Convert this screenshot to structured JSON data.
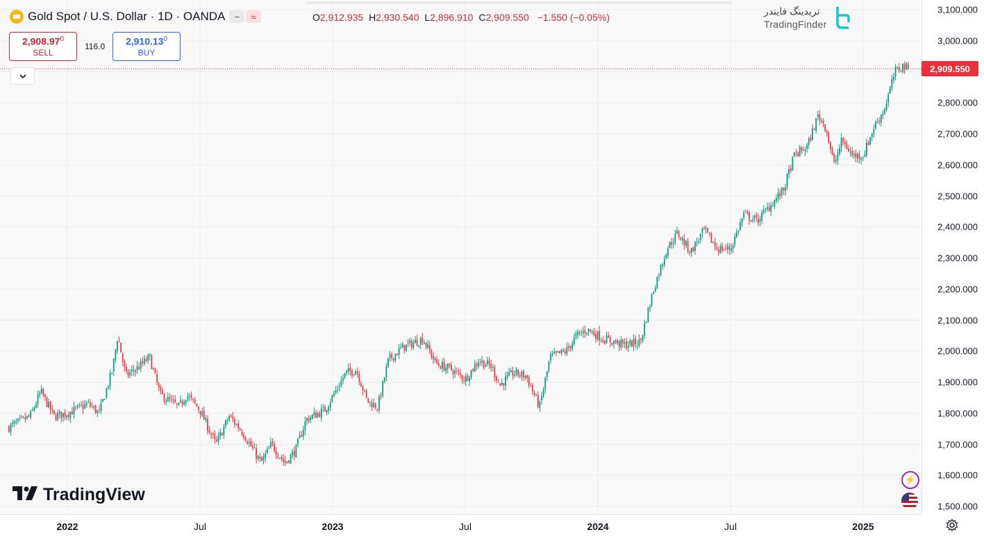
{
  "legend": {
    "title": "Gold Spot / U.S. Dollar · 1D · OANDA",
    "ohlc": {
      "o_label": "O",
      "o": "2,912.935",
      "h_label": "H",
      "h": "2,930.540",
      "l_label": "L",
      "l": "2,896.910",
      "c_label": "C",
      "c": "2,909.550",
      "change": "−1.550 (−0.05%)"
    },
    "chip_minus": "−",
    "chip_wave": "≈"
  },
  "trade": {
    "sell_price": "2,908.97",
    "sell_price_sup": "0",
    "sell_label": "SELL",
    "spread": "116.0",
    "buy_price": "2,910.13",
    "buy_price_sup": "0",
    "buy_label": "BUY"
  },
  "collapse_icon": "chevron-down-icon",
  "last_price_tag": "2,909.550",
  "branding": {
    "tradingview": "TradingView",
    "tradingfinder_fa": "تریدینگ فایندر",
    "tradingfinder_en": "TradingFinder"
  },
  "colors": {
    "up": "#089981",
    "down": "#f23645",
    "sell": "#c8263a",
    "buy": "#2962ff",
    "last_price": "#e8313d"
  },
  "chart_data": {
    "type": "candlestick",
    "symbol": "XAUUSD",
    "interval": "1D",
    "ylim": [
      1500,
      3100
    ],
    "y_ticks": [
      "3,100.000",
      "3,000.000",
      "2,900.000",
      "2,800.000",
      "2,700.000",
      "2,600.000",
      "2,500.000",
      "2,400.000",
      "2,300.000",
      "2,200.000",
      "2,100.000",
      "2,000.000",
      "1,900.000",
      "1,800.000",
      "1,700.000",
      "1,600.000",
      "1,500.000"
    ],
    "x_ticks": [
      {
        "label": "2022",
        "year": true,
        "t": 2022.0
      },
      {
        "label": "Jul",
        "year": false,
        "t": 2022.5
      },
      {
        "label": "2023",
        "year": true,
        "t": 2023.0
      },
      {
        "label": "Jul",
        "year": false,
        "t": 2023.5
      },
      {
        "label": "2024",
        "year": true,
        "t": 2024.0
      },
      {
        "label": "Jul",
        "year": false,
        "t": 2024.5
      },
      {
        "label": "2025",
        "year": true,
        "t": 2025.0
      }
    ],
    "last_close": 2909.55,
    "approx_path": [
      [
        2021.78,
        1755
      ],
      [
        2021.86,
        1790
      ],
      [
        2021.9,
        1870
      ],
      [
        2021.95,
        1790
      ],
      [
        2022.0,
        1800
      ],
      [
        2022.08,
        1830
      ],
      [
        2022.12,
        1800
      ],
      [
        2022.17,
        1940
      ],
      [
        2022.19,
        2050
      ],
      [
        2022.22,
        1920
      ],
      [
        2022.27,
        1950
      ],
      [
        2022.31,
        1980
      ],
      [
        2022.35,
        1860
      ],
      [
        2022.42,
        1820
      ],
      [
        2022.45,
        1860
      ],
      [
        2022.5,
        1810
      ],
      [
        2022.56,
        1700
      ],
      [
        2022.61,
        1790
      ],
      [
        2022.66,
        1740
      ],
      [
        2022.73,
        1640
      ],
      [
        2022.77,
        1700
      ],
      [
        2022.82,
        1640
      ],
      [
        2022.86,
        1680
      ],
      [
        2022.9,
        1780
      ],
      [
        2022.97,
        1810
      ],
      [
        2023.05,
        1930
      ],
      [
        2023.09,
        1940
      ],
      [
        2023.13,
        1840
      ],
      [
        2023.17,
        1820
      ],
      [
        2023.21,
        1970
      ],
      [
        2023.26,
        2010
      ],
      [
        2023.34,
        2040
      ],
      [
        2023.39,
        1960
      ],
      [
        2023.45,
        1940
      ],
      [
        2023.5,
        1910
      ],
      [
        2023.55,
        1970
      ],
      [
        2023.6,
        1950
      ],
      [
        2023.63,
        1890
      ],
      [
        2023.68,
        1930
      ],
      [
        2023.73,
        1920
      ],
      [
        2023.78,
        1820
      ],
      [
        2023.82,
        1980
      ],
      [
        2023.88,
        2000
      ],
      [
        2023.92,
        2050
      ],
      [
        2023.96,
        2070
      ],
      [
        2024.02,
        2040
      ],
      [
        2024.1,
        2020
      ],
      [
        2024.16,
        2030
      ],
      [
        2024.21,
        2200
      ],
      [
        2024.26,
        2330
      ],
      [
        2024.3,
        2380
      ],
      [
        2024.35,
        2320
      ],
      [
        2024.4,
        2390
      ],
      [
        2024.45,
        2330
      ],
      [
        2024.5,
        2330
      ],
      [
        2024.55,
        2440
      ],
      [
        2024.6,
        2420
      ],
      [
        2024.65,
        2470
      ],
      [
        2024.7,
        2520
      ],
      [
        2024.74,
        2630
      ],
      [
        2024.79,
        2660
      ],
      [
        2024.83,
        2760
      ],
      [
        2024.86,
        2720
      ],
      [
        2024.89,
        2600
      ],
      [
        2024.92,
        2680
      ],
      [
        2024.96,
        2630
      ],
      [
        2025.0,
        2630
      ],
      [
        2025.04,
        2720
      ],
      [
        2025.08,
        2780
      ],
      [
        2025.12,
        2900
      ],
      [
        2025.15,
        2920
      ],
      [
        2025.17,
        2909.55
      ]
    ]
  }
}
